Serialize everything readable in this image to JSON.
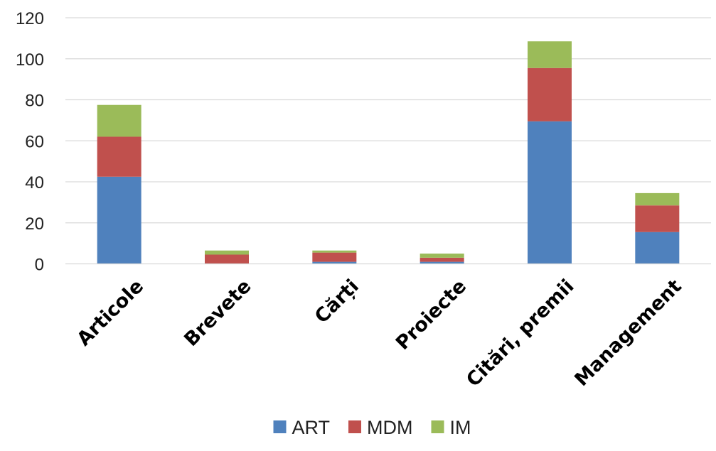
{
  "chart_data": {
    "type": "bar",
    "stacked": true,
    "categories": [
      "Articole",
      "Brevete",
      "Cărți",
      "Proiecte",
      "Citări, premii",
      "Management"
    ],
    "series": [
      {
        "name": "ART",
        "color": "#4f81bd",
        "values": [
          42.5,
          0,
          1,
          1,
          69.5,
          15.5
        ]
      },
      {
        "name": "MDM",
        "color": "#c0504d",
        "values": [
          19.5,
          4.5,
          4.5,
          2,
          26,
          13
        ]
      },
      {
        "name": "IM",
        "color": "#9bbb59",
        "values": [
          15.5,
          2,
          1,
          2,
          13,
          6
        ]
      }
    ],
    "yticks": [
      0,
      20,
      40,
      60,
      80,
      100,
      120
    ],
    "ylim": [
      0,
      120
    ],
    "grid": true,
    "legend_position": "bottom",
    "title": "",
    "xlabel": "",
    "ylabel": ""
  }
}
